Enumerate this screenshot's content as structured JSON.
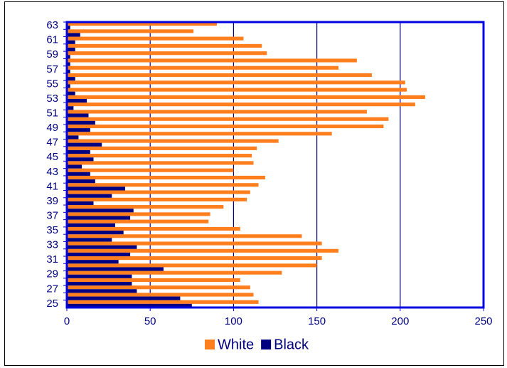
{
  "chart_data": {
    "type": "barh",
    "categories": [
      "25",
      null,
      "27",
      null,
      "29",
      null,
      "31",
      null,
      "33",
      null,
      "35",
      null,
      "37",
      null,
      "39",
      null,
      "41",
      null,
      "43",
      null,
      "45",
      null,
      "47",
      null,
      "49",
      null,
      "51",
      null,
      "53",
      null,
      "55",
      null,
      "57",
      null,
      "59",
      null,
      "61",
      null,
      "63"
    ],
    "series": [
      {
        "name": "White",
        "color": "#ff7f1e",
        "values": [
          115,
          112,
          110,
          104,
          129,
          150,
          153,
          163,
          153,
          141,
          104,
          85,
          86,
          94,
          108,
          110,
          115,
          119,
          100,
          112,
          111,
          114,
          127,
          159,
          190,
          193,
          180,
          209,
          215,
          204,
          203,
          183,
          163,
          174,
          120,
          117,
          106,
          76,
          90
        ]
      },
      {
        "name": "Black",
        "color": "#000080",
        "values": [
          75,
          68,
          42,
          39,
          39,
          58,
          31,
          38,
          42,
          27,
          34,
          29,
          38,
          40,
          16,
          27,
          35,
          17,
          14,
          9,
          16,
          14,
          21,
          7,
          14,
          17,
          13,
          4,
          12,
          5,
          2,
          5,
          2,
          2,
          2,
          5,
          5,
          8,
          2
        ]
      }
    ],
    "xlim": [
      0,
      250
    ],
    "xticks": [
      0,
      50,
      100,
      150,
      200,
      250
    ],
    "grid": true,
    "legend": "bottom"
  }
}
